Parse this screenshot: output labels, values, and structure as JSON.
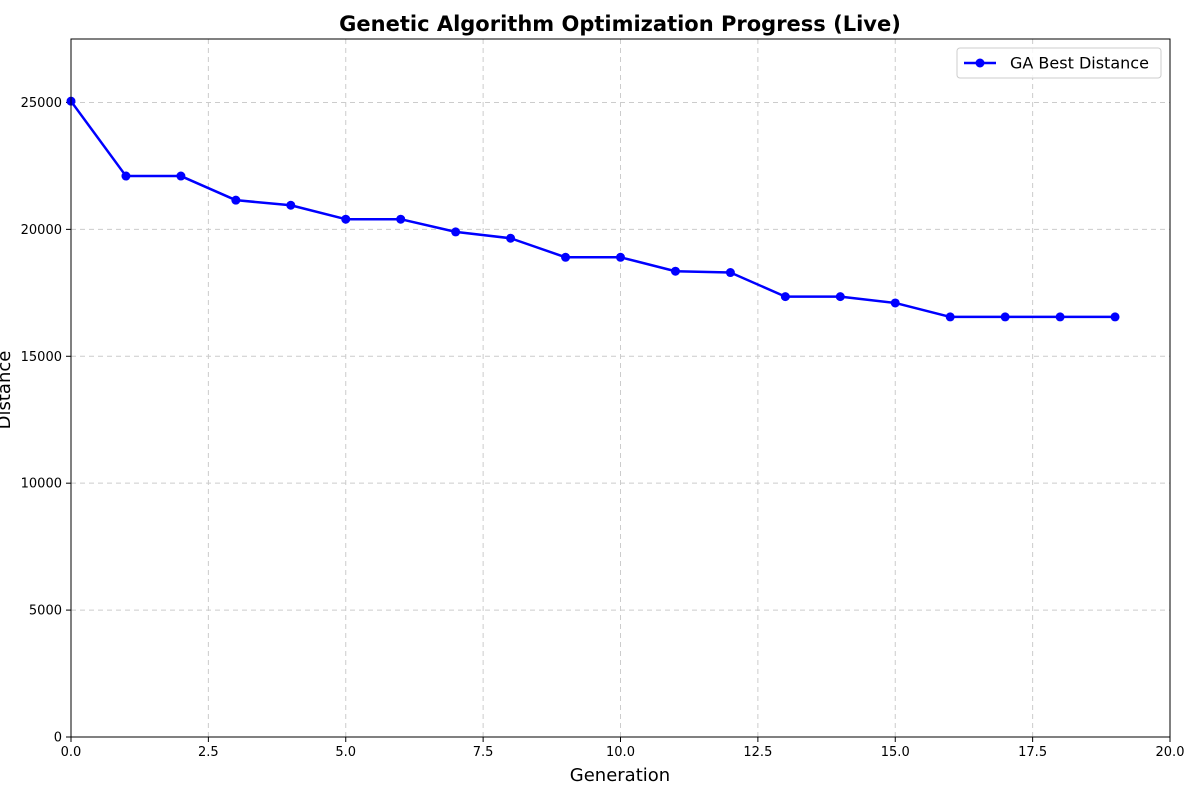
{
  "chart_data": {
    "type": "line",
    "title": "Genetic Algorithm Optimization Progress (Live)",
    "xlabel": "Generation",
    "ylabel": "Distance",
    "xlim": [
      0,
      20
    ],
    "ylim": [
      0,
      27500
    ],
    "x_ticks": [
      0,
      2.5,
      5,
      7.5,
      10,
      12.5,
      15,
      17.5,
      20
    ],
    "x_tick_labels": [
      "0.0",
      "2.5",
      "5.0",
      "7.5",
      "10.0",
      "12.5",
      "15.0",
      "17.5",
      "20.0"
    ],
    "y_ticks": [
      0,
      5000,
      10000,
      15000,
      20000,
      25000
    ],
    "y_tick_labels": [
      "0",
      "5000",
      "10000",
      "15000",
      "20000",
      "25000"
    ],
    "grid": true,
    "legend": {
      "placement": "top-right",
      "entries": [
        "GA Best Distance"
      ]
    },
    "series": [
      {
        "name": "GA Best Distance",
        "color": "#0000ff",
        "marker": "circle",
        "x": [
          0,
          1,
          2,
          3,
          4,
          5,
          6,
          7,
          8,
          9,
          10,
          11,
          12,
          13,
          14,
          15,
          16,
          17,
          18,
          19
        ],
        "values": [
          25050,
          22100,
          22100,
          21150,
          20950,
          20400,
          20400,
          19900,
          19650,
          18900,
          18900,
          18350,
          18300,
          17350,
          17350,
          17100,
          16550,
          16550,
          16550,
          16550
        ]
      }
    ]
  }
}
